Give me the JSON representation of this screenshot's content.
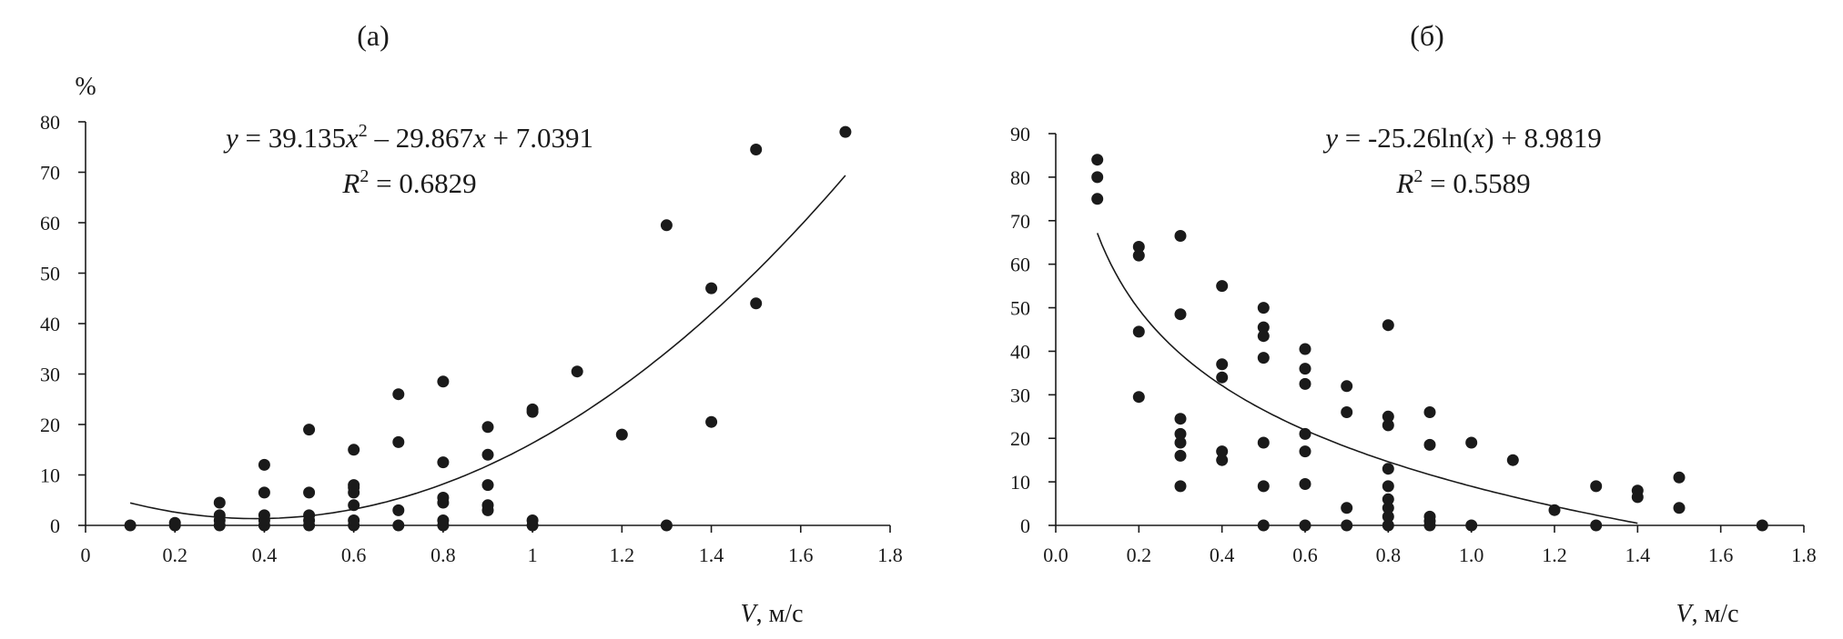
{
  "chart_data": [
    {
      "type": "scatter",
      "panel_label": "(а)",
      "ylabel": "%",
      "xlabel": "V, м/с",
      "xlabel_var": "V",
      "xlabel_unit": ", м/с",
      "xlim": [
        0,
        1.8
      ],
      "ylim": [
        0,
        80
      ],
      "xticks": [
        "0",
        "0.2",
        "0.4",
        "0.6",
        "0.8",
        "1",
        "1.2",
        "1.4",
        "1.6",
        "1.8"
      ],
      "yticks": [
        "0",
        "10",
        "20",
        "30",
        "40",
        "50",
        "60",
        "70",
        "80"
      ],
      "grid": false,
      "trendline": {
        "kind": "polynomial",
        "coefficients": [
          39.135,
          -29.867,
          7.0391
        ],
        "x_range": [
          0.1,
          1.7
        ],
        "equation_text": "y = 39.135x² – 29.867x + 7.0391",
        "eq_y": "y",
        "eq_parts": [
          "39.135",
          "x",
          "2",
          "29.867",
          "x",
          "7.0391"
        ],
        "r2_text": "R² = 0.6829",
        "r2_value": "0.6829"
      },
      "points": [
        [
          0.1,
          0
        ],
        [
          0.2,
          0
        ],
        [
          0.2,
          0.5
        ],
        [
          0.3,
          0
        ],
        [
          0.3,
          1
        ],
        [
          0.3,
          2
        ],
        [
          0.3,
          4.5
        ],
        [
          0.4,
          0
        ],
        [
          0.4,
          1
        ],
        [
          0.4,
          2
        ],
        [
          0.4,
          6.5
        ],
        [
          0.4,
          12
        ],
        [
          0.5,
          0
        ],
        [
          0.5,
          1
        ],
        [
          0.5,
          2
        ],
        [
          0.5,
          6.5
        ],
        [
          0.5,
          19
        ],
        [
          0.6,
          0
        ],
        [
          0.6,
          1
        ],
        [
          0.6,
          4
        ],
        [
          0.6,
          6.5
        ],
        [
          0.6,
          7.5
        ],
        [
          0.6,
          8
        ],
        [
          0.6,
          15
        ],
        [
          0.7,
          0
        ],
        [
          0.7,
          3
        ],
        [
          0.7,
          16.5
        ],
        [
          0.7,
          26
        ],
        [
          0.8,
          0
        ],
        [
          0.8,
          1
        ],
        [
          0.8,
          4.5
        ],
        [
          0.8,
          5.5
        ],
        [
          0.8,
          12.5
        ],
        [
          0.8,
          28.5
        ],
        [
          0.9,
          3
        ],
        [
          0.9,
          4
        ],
        [
          0.9,
          8
        ],
        [
          0.9,
          14
        ],
        [
          0.9,
          19.5
        ],
        [
          1.0,
          0
        ],
        [
          1.0,
          1
        ],
        [
          1.0,
          22.5
        ],
        [
          1.0,
          23
        ],
        [
          1.1,
          30.5
        ],
        [
          1.2,
          18
        ],
        [
          1.3,
          0
        ],
        [
          1.3,
          59.5
        ],
        [
          1.4,
          20.5
        ],
        [
          1.4,
          47
        ],
        [
          1.5,
          44
        ],
        [
          1.5,
          74.5
        ],
        [
          1.7,
          78
        ]
      ]
    },
    {
      "type": "scatter",
      "panel_label": "(б)",
      "ylabel": "",
      "xlabel": "V, м/с",
      "xlabel_var": "V",
      "xlabel_unit": ", м/с",
      "xlim": [
        0,
        1.8
      ],
      "ylim": [
        0,
        90
      ],
      "xticks": [
        "0.0",
        "0.2",
        "0.4",
        "0.6",
        "0.8",
        "1.0",
        "1.2",
        "1.4",
        "1.6",
        "1.8"
      ],
      "yticks": [
        "0",
        "10",
        "20",
        "30",
        "40",
        "50",
        "60",
        "70",
        "80",
        "90"
      ],
      "grid": false,
      "trendline": {
        "kind": "logarithmic",
        "coefficients": [
          -25.26,
          8.9819
        ],
        "x_range": [
          0.1,
          1.4
        ],
        "equation_text": "y = -25.26ln(x) + 8.9819",
        "eq_y": "y",
        "eq_parts": [
          "-25.26ln(",
          "x",
          ")",
          "8.9819"
        ],
        "r2_text": "R² = 0.5589",
        "r2_value": "0.5589"
      },
      "points": [
        [
          0.1,
          75
        ],
        [
          0.1,
          80
        ],
        [
          0.1,
          84
        ],
        [
          0.2,
          29.5
        ],
        [
          0.2,
          44.5
        ],
        [
          0.2,
          62
        ],
        [
          0.2,
          64
        ],
        [
          0.3,
          9
        ],
        [
          0.3,
          16
        ],
        [
          0.3,
          19
        ],
        [
          0.3,
          21
        ],
        [
          0.3,
          24.5
        ],
        [
          0.3,
          48.5
        ],
        [
          0.3,
          66.5
        ],
        [
          0.4,
          15
        ],
        [
          0.4,
          17
        ],
        [
          0.4,
          34
        ],
        [
          0.4,
          37
        ],
        [
          0.4,
          55
        ],
        [
          0.5,
          0
        ],
        [
          0.5,
          9
        ],
        [
          0.5,
          19
        ],
        [
          0.5,
          38.5
        ],
        [
          0.5,
          43.5
        ],
        [
          0.5,
          45.5
        ],
        [
          0.5,
          50
        ],
        [
          0.6,
          0
        ],
        [
          0.6,
          9.5
        ],
        [
          0.6,
          17
        ],
        [
          0.6,
          21
        ],
        [
          0.6,
          32.5
        ],
        [
          0.6,
          36
        ],
        [
          0.6,
          40.5
        ],
        [
          0.7,
          0
        ],
        [
          0.7,
          4
        ],
        [
          0.7,
          26
        ],
        [
          0.7,
          32
        ],
        [
          0.8,
          0
        ],
        [
          0.8,
          2
        ],
        [
          0.8,
          4
        ],
        [
          0.8,
          6
        ],
        [
          0.8,
          9
        ],
        [
          0.8,
          13
        ],
        [
          0.8,
          23
        ],
        [
          0.8,
          25
        ],
        [
          0.8,
          46
        ],
        [
          0.9,
          0
        ],
        [
          0.9,
          1
        ],
        [
          0.9,
          2
        ],
        [
          0.9,
          18.5
        ],
        [
          0.9,
          26
        ],
        [
          1.0,
          0
        ],
        [
          1.0,
          19
        ],
        [
          1.1,
          15
        ],
        [
          1.2,
          3.5
        ],
        [
          1.3,
          0
        ],
        [
          1.3,
          9
        ],
        [
          1.4,
          6.5
        ],
        [
          1.4,
          8
        ],
        [
          1.5,
          4
        ],
        [
          1.5,
          11
        ],
        [
          1.7,
          0
        ]
      ]
    }
  ]
}
